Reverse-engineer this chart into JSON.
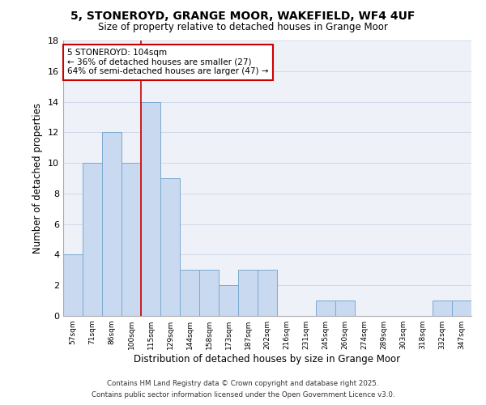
{
  "title1": "5, STONEROYD, GRANGE MOOR, WAKEFIELD, WF4 4UF",
  "title2": "Size of property relative to detached houses in Grange Moor",
  "xlabel": "Distribution of detached houses by size in Grange Moor",
  "ylabel": "Number of detached properties",
  "bar_color": "#c9d9f0",
  "bar_edge_color": "#7aaad0",
  "categories": [
    "57sqm",
    "71sqm",
    "86sqm",
    "100sqm",
    "115sqm",
    "129sqm",
    "144sqm",
    "158sqm",
    "173sqm",
    "187sqm",
    "202sqm",
    "216sqm",
    "231sqm",
    "245sqm",
    "260sqm",
    "274sqm",
    "289sqm",
    "303sqm",
    "318sqm",
    "332sqm",
    "347sqm"
  ],
  "values": [
    4,
    10,
    12,
    10,
    14,
    9,
    3,
    3,
    2,
    3,
    3,
    0,
    0,
    1,
    1,
    0,
    0,
    0,
    0,
    1,
    1
  ],
  "vline_x": 3.5,
  "vline_color": "#cc0000",
  "annotation_text": "5 STONEROYD: 104sqm\n← 36% of detached houses are smaller (27)\n64% of semi-detached houses are larger (47) →",
  "annotation_box_color": "white",
  "annotation_edge_color": "#cc0000",
  "footer1": "Contains HM Land Registry data © Crown copyright and database right 2025.",
  "footer2": "Contains public sector information licensed under the Open Government Licence v3.0.",
  "ylim": [
    0,
    18
  ],
  "yticks": [
    0,
    2,
    4,
    6,
    8,
    10,
    12,
    14,
    16,
    18
  ],
  "grid_color": "#d0d8e8",
  "bg_color": "#eef2f8"
}
